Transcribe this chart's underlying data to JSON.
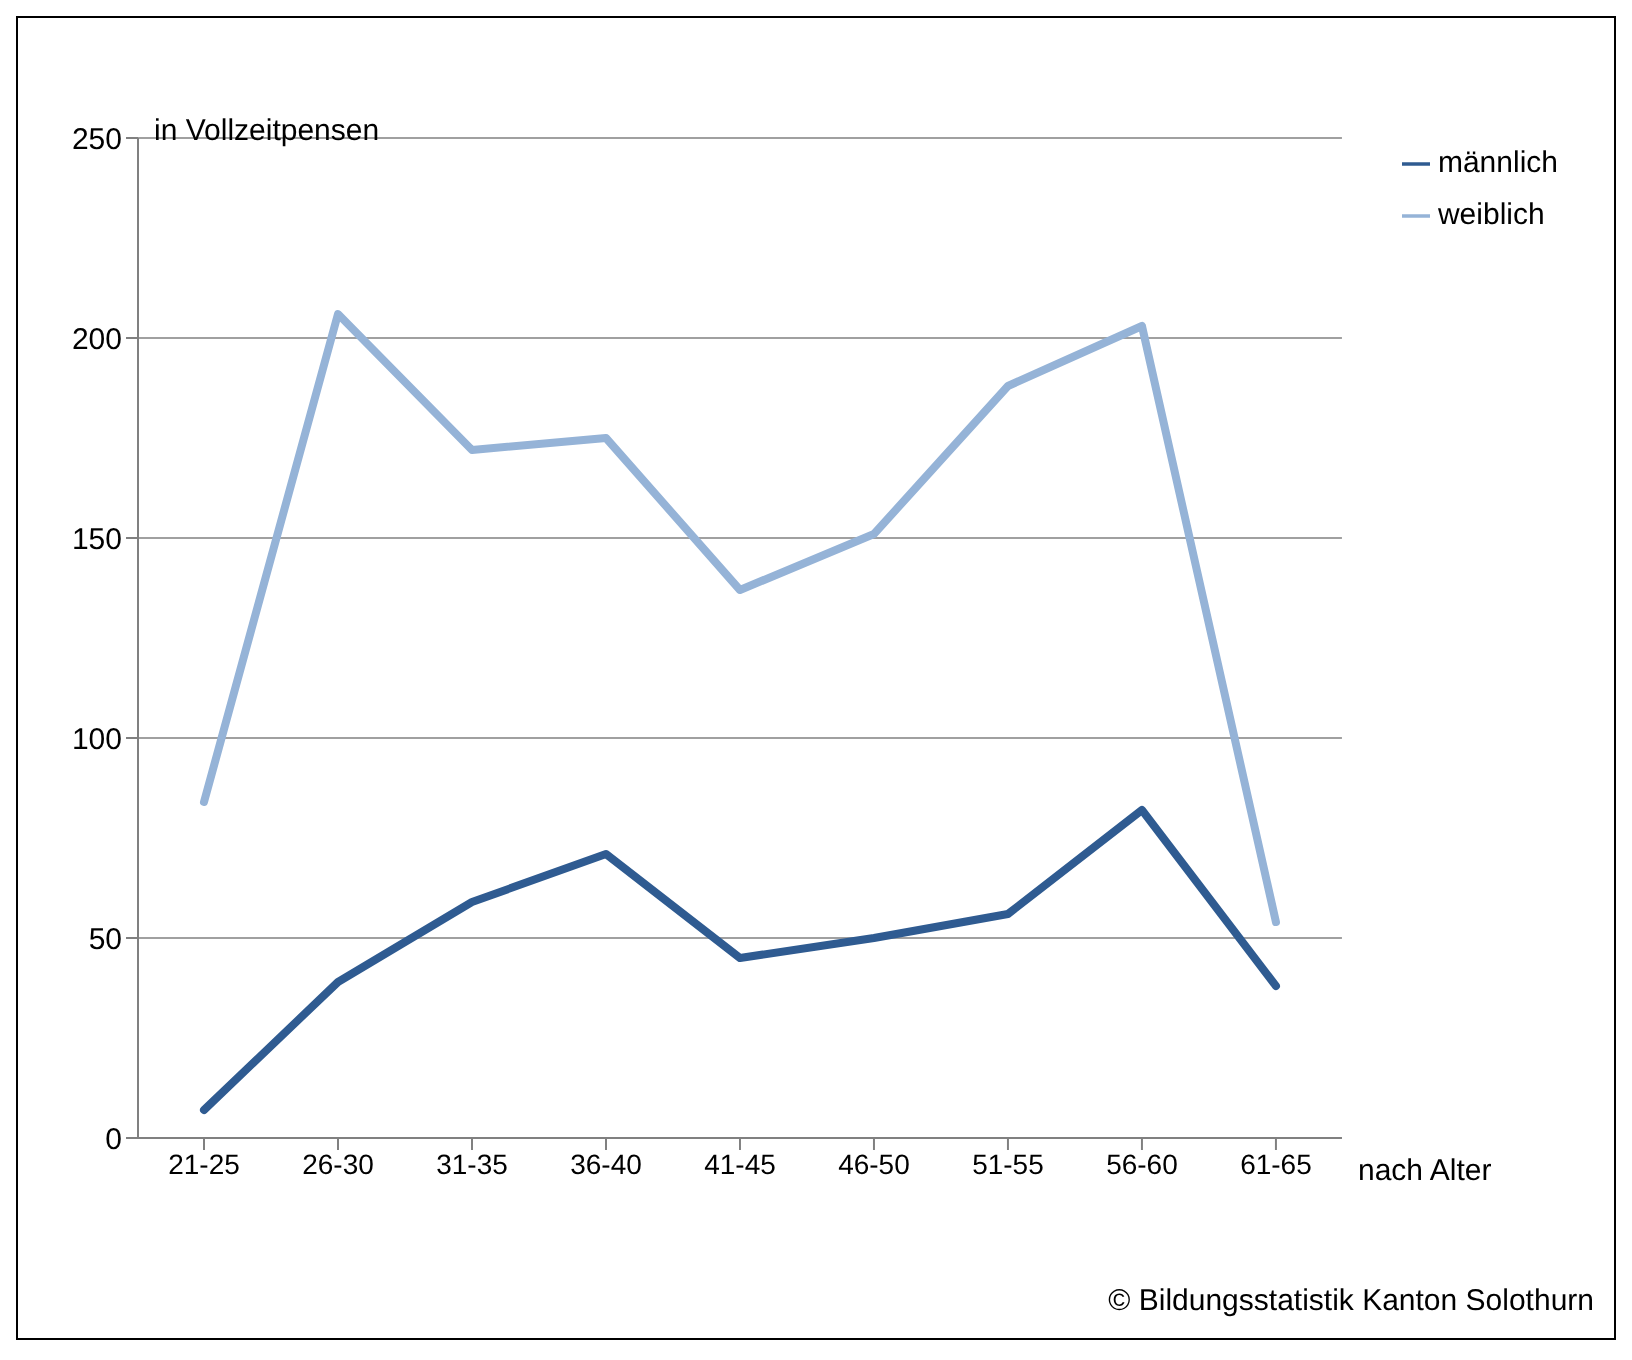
{
  "chart_data": {
    "type": "line",
    "ylabel": "in Vollzeitpensen",
    "xlabel": "nach Alter",
    "categories": [
      "21-25",
      "26-30",
      "31-35",
      "36-40",
      "41-45",
      "46-50",
      "51-55",
      "56-60",
      "61-65"
    ],
    "series": [
      {
        "name": "männlich",
        "color": "#2f5b91",
        "values": [
          7,
          39,
          59,
          71,
          45,
          50,
          56,
          82,
          38
        ]
      },
      {
        "name": "weiblich",
        "color": "#95b3d7",
        "values": [
          84,
          206,
          172,
          175,
          137,
          151,
          188,
          203,
          54
        ]
      }
    ],
    "ylim": [
      0,
      250
    ],
    "yticks": [
      0,
      50,
      100,
      150,
      200,
      250
    ],
    "grid": "y",
    "legend": "top right",
    "marker": "none",
    "line_style": "solid",
    "annotations": [
      "© Bildungsstatistik Kanton Solothurn"
    ]
  }
}
